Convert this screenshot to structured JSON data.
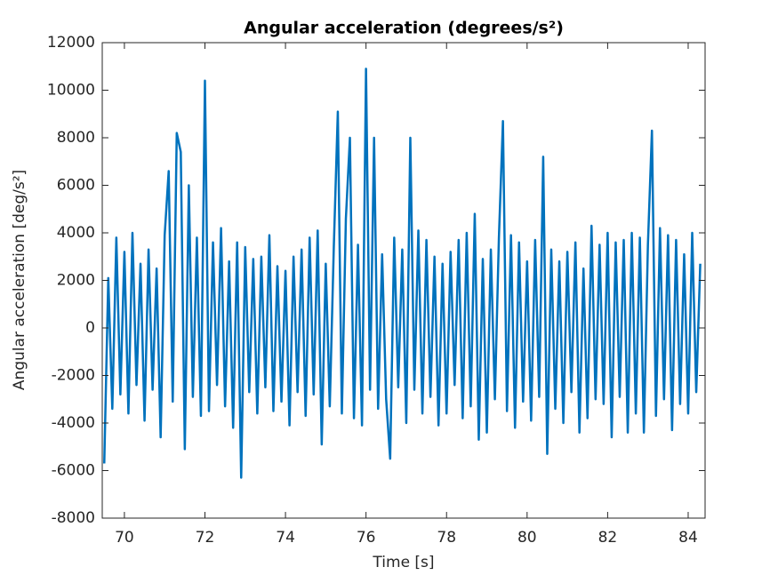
{
  "chart_data": {
    "type": "line",
    "title": "Angular acceleration (degrees/s²)",
    "xlabel": "Time [s]",
    "ylabel": "Angular acceleration [deg/s²]",
    "xlim": [
      69.45,
      84.42
    ],
    "ylim": [
      -8000,
      12000
    ],
    "xticks": [
      70,
      72,
      74,
      76,
      78,
      80,
      82,
      84
    ],
    "yticks": [
      -8000,
      -6000,
      -4000,
      -2000,
      0,
      2000,
      4000,
      6000,
      8000,
      10000,
      12000
    ],
    "grid": false,
    "x": [
      69.5,
      69.6,
      69.7,
      69.8,
      69.9,
      70.0,
      70.1,
      70.2,
      70.3,
      70.4,
      70.5,
      70.6,
      70.7,
      70.8,
      70.9,
      71.0,
      71.1,
      71.2,
      71.3,
      71.4,
      71.5,
      71.6,
      71.7,
      71.8,
      71.9,
      72.0,
      72.1,
      72.2,
      72.3,
      72.4,
      72.5,
      72.6,
      72.7,
      72.8,
      72.9,
      73.0,
      73.1,
      73.2,
      73.3,
      73.4,
      73.5,
      73.6,
      73.7,
      73.8,
      73.9,
      74.0,
      74.1,
      74.2,
      74.3,
      74.4,
      74.5,
      74.6,
      74.7,
      74.8,
      74.9,
      75.0,
      75.1,
      75.2,
      75.3,
      75.4,
      75.5,
      75.6,
      75.7,
      75.8,
      75.9,
      76.0,
      76.1,
      76.2,
      76.3,
      76.4,
      76.5,
      76.6,
      76.7,
      76.8,
      76.9,
      77.0,
      77.1,
      77.2,
      77.3,
      77.4,
      77.5,
      77.6,
      77.7,
      77.8,
      77.9,
      78.0,
      78.1,
      78.2,
      78.3,
      78.4,
      78.5,
      78.6,
      78.7,
      78.8,
      78.9,
      79.0,
      79.1,
      79.2,
      79.3,
      79.4,
      79.5,
      79.6,
      79.7,
      79.8,
      79.9,
      80.0,
      80.1,
      80.2,
      80.3,
      80.4,
      80.5,
      80.6,
      80.7,
      80.8,
      80.9,
      81.0,
      81.1,
      81.2,
      81.3,
      81.4,
      81.5,
      81.6,
      81.7,
      81.8,
      81.9,
      82.0,
      82.1,
      82.2,
      82.3,
      82.4,
      82.5,
      82.6,
      82.7,
      82.8,
      82.9,
      83.0,
      83.1,
      83.2,
      83.3,
      83.4,
      83.5,
      83.6,
      83.7,
      83.8,
      83.9,
      84.0,
      84.1,
      84.2,
      84.3
    ],
    "series": [
      {
        "color": "#0072bd",
        "values": [
          -5700,
          2100,
          -3400,
          3800,
          -2800,
          3200,
          -3600,
          4000,
          -2400,
          2700,
          -3900,
          3300,
          -2600,
          2500,
          -4600,
          3900,
          6600,
          -3100,
          8200,
          7400,
          -5100,
          6000,
          -2900,
          3800,
          -3700,
          10400,
          -3500,
          3600,
          -2400,
          4200,
          -3300,
          2800,
          -4200,
          3600,
          -6300,
          3400,
          -2700,
          2900,
          -3600,
          3000,
          -2500,
          3900,
          -3500,
          2600,
          -3100,
          2400,
          -4100,
          3000,
          -2700,
          3300,
          -3700,
          3800,
          -2800,
          4100,
          -4900,
          2700,
          -3300,
          3400,
          9100,
          -3600,
          4600,
          8000,
          -3800,
          3500,
          -4100,
          10900,
          -2600,
          8000,
          -3400,
          3100,
          -3000,
          -5500,
          3800,
          -2500,
          3300,
          -4000,
          8000,
          -2600,
          4100,
          -3600,
          3700,
          -2900,
          3000,
          -4100,
          2700,
          -3600,
          3200,
          -2400,
          3700,
          -3800,
          4000,
          -3300,
          4800,
          -4700,
          2900,
          -4400,
          3300,
          -3000,
          3800,
          8700,
          -3500,
          3900,
          -4200,
          3600,
          -3100,
          2800,
          -3900,
          3700,
          -2900,
          7200,
          -5300,
          3300,
          -3400,
          2800,
          -4000,
          3200,
          -2700,
          3600,
          -4400,
          2500,
          -3800,
          4300,
          -3000,
          3500,
          -3200,
          4000,
          -4600,
          3600,
          -2900,
          3700,
          -4400,
          4000,
          -3600,
          3800,
          -4400,
          3500,
          8300,
          -3700,
          4200,
          -3000,
          3900,
          -4300,
          3700,
          -3200,
          3100,
          -3600,
          4000,
          -2700,
          2700
        ]
      }
    ]
  }
}
